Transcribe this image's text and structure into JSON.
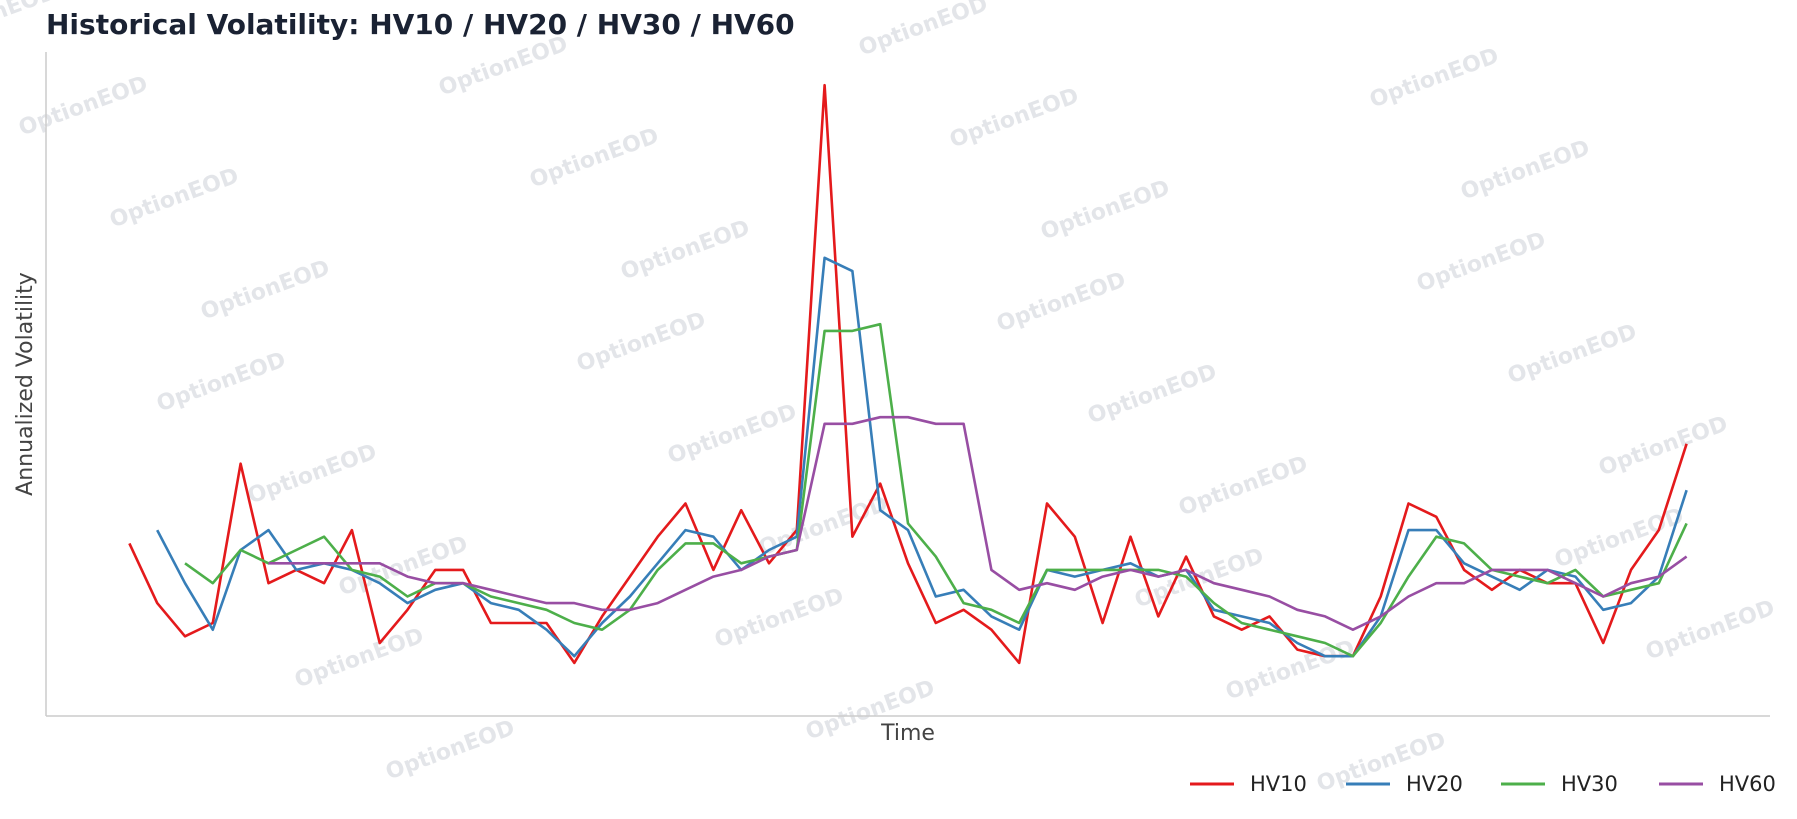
{
  "chart_data": {
    "type": "line",
    "title": "Historical Volatility: HV10 / HV20 / HV30 / HV60",
    "xlabel": "Time",
    "ylabel": "Annualized Volatility",
    "watermark": "OptionEOD",
    "x": [
      0,
      1,
      2,
      3,
      4,
      5,
      6,
      7,
      8,
      9,
      10,
      11,
      12,
      13,
      14,
      15,
      16,
      17,
      18,
      19,
      20,
      21,
      22,
      23,
      24,
      25,
      26,
      27,
      28,
      29,
      30,
      31,
      32,
      33,
      34,
      35,
      36,
      37,
      38,
      39,
      40,
      41,
      42,
      43,
      44,
      45,
      46,
      47,
      48,
      49,
      50,
      51,
      52,
      53,
      54,
      55,
      56
    ],
    "xlim": [
      -3,
      59
    ],
    "ylim": [
      0,
      100
    ],
    "grid": false,
    "legend": "bottom-right",
    "series": [
      {
        "name": "HV10",
        "color": "#e41a1c",
        "values": [
          26,
          17,
          12,
          14,
          38,
          20,
          22,
          20,
          28,
          11,
          16,
          22,
          22,
          14,
          14,
          14,
          8,
          15,
          21,
          27,
          32,
          22,
          31,
          23,
          28,
          95,
          27,
          35,
          23,
          14,
          16,
          13,
          8,
          32,
          27,
          14,
          27,
          15,
          24,
          15,
          13,
          15,
          10,
          9,
          9,
          18,
          32,
          30,
          22,
          19,
          22,
          20,
          20,
          11,
          22,
          28,
          41
        ]
      },
      {
        "name": "HV20",
        "color": "#377eb8",
        "values": [
          null,
          28,
          20,
          13,
          25,
          28,
          22,
          23,
          22,
          20,
          17,
          19,
          20,
          17,
          16,
          13,
          9,
          14,
          18,
          23,
          28,
          27,
          22,
          25,
          27,
          69,
          67,
          31,
          28,
          18,
          19,
          15,
          13,
          22,
          21,
          22,
          23,
          21,
          22,
          16,
          15,
          14,
          11,
          9,
          9,
          15,
          28,
          28,
          23,
          21,
          19,
          22,
          21,
          16,
          17,
          21,
          34
        ]
      },
      {
        "name": "HV30",
        "color": "#4daf4a",
        "values": [
          null,
          null,
          23,
          20,
          25,
          23,
          25,
          27,
          22,
          21,
          18,
          20,
          20,
          18,
          17,
          16,
          14,
          13,
          16,
          22,
          26,
          26,
          23,
          24,
          25,
          58,
          58,
          59,
          29,
          24,
          17,
          16,
          14,
          22,
          22,
          22,
          22,
          22,
          21,
          17,
          14,
          13,
          12,
          11,
          9,
          14,
          21,
          27,
          26,
          22,
          21,
          20,
          22,
          18,
          19,
          20,
          29
        ]
      },
      {
        "name": "HV60",
        "color": "#984ea3",
        "values": [
          null,
          null,
          null,
          null,
          null,
          23,
          23,
          23,
          23,
          23,
          21,
          20,
          20,
          19,
          18,
          17,
          17,
          16,
          16,
          17,
          19,
          21,
          22,
          24,
          25,
          44,
          44,
          45,
          45,
          44,
          44,
          22,
          19,
          20,
          19,
          21,
          22,
          21,
          22,
          20,
          19,
          18,
          16,
          15,
          13,
          15,
          18,
          20,
          20,
          22,
          22,
          22,
          20,
          18,
          20,
          21,
          24
        ]
      }
    ]
  }
}
